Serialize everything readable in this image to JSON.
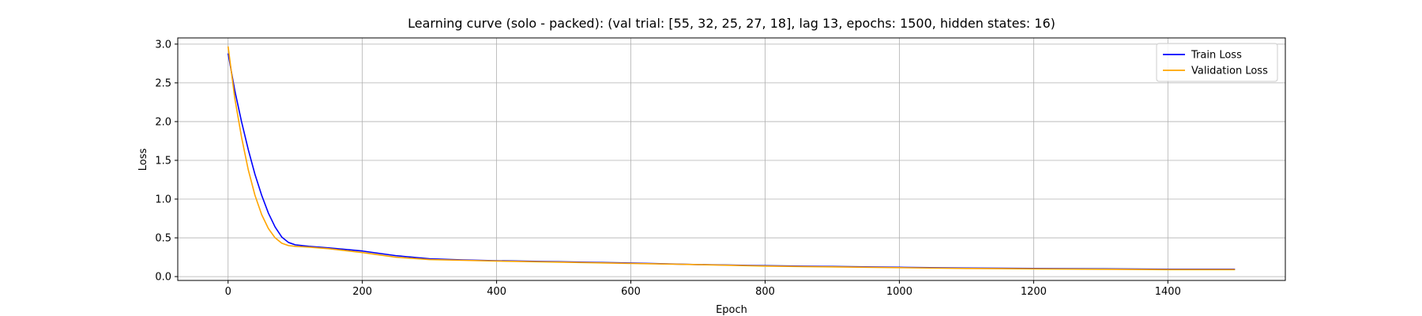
{
  "chart_data": {
    "type": "line",
    "title": "Learning curve (solo - packed): (val trial: [55, 32, 25, 27, 18], lag 13, epochs: 1500, hidden states: 16)",
    "xlabel": "Epoch",
    "ylabel": "Loss",
    "xlim": [
      -75,
      1575
    ],
    "ylim": [
      -0.05,
      3.08
    ],
    "xticks": [
      0,
      200,
      400,
      600,
      800,
      1000,
      1200,
      1400
    ],
    "yticks": [
      0.0,
      0.5,
      1.0,
      1.5,
      2.0,
      2.5,
      3.0
    ],
    "xtick_labels": [
      "0",
      "200",
      "400",
      "600",
      "800",
      "1000",
      "1200",
      "1400"
    ],
    "ytick_labels": [
      "0.0",
      "0.5",
      "1.0",
      "1.5",
      "2.0",
      "2.5",
      "3.0"
    ],
    "grid": true,
    "legend_position": "top-right",
    "x": [
      0,
      10,
      20,
      30,
      40,
      50,
      60,
      70,
      80,
      90,
      100,
      120,
      150,
      200,
      250,
      300,
      350,
      400,
      500,
      600,
      700,
      800,
      900,
      1000,
      1100,
      1200,
      1300,
      1400,
      1500
    ],
    "series": [
      {
        "name": "Train Loss",
        "color": "#0000ff",
        "values": [
          2.88,
          2.4,
          2.0,
          1.64,
          1.32,
          1.05,
          0.82,
          0.64,
          0.51,
          0.44,
          0.41,
          0.39,
          0.37,
          0.33,
          0.27,
          0.23,
          0.215,
          0.205,
          0.19,
          0.175,
          0.155,
          0.14,
          0.13,
          0.12,
          0.11,
          0.105,
          0.1,
          0.095,
          0.095
        ]
      },
      {
        "name": "Validation Loss",
        "color": "#ffa500",
        "values": [
          2.97,
          2.3,
          1.8,
          1.38,
          1.05,
          0.8,
          0.62,
          0.5,
          0.43,
          0.4,
          0.39,
          0.38,
          0.36,
          0.31,
          0.25,
          0.22,
          0.21,
          0.2,
          0.185,
          0.17,
          0.155,
          0.135,
          0.125,
          0.115,
          0.105,
          0.1,
          0.095,
          0.09,
          0.09
        ]
      }
    ]
  }
}
